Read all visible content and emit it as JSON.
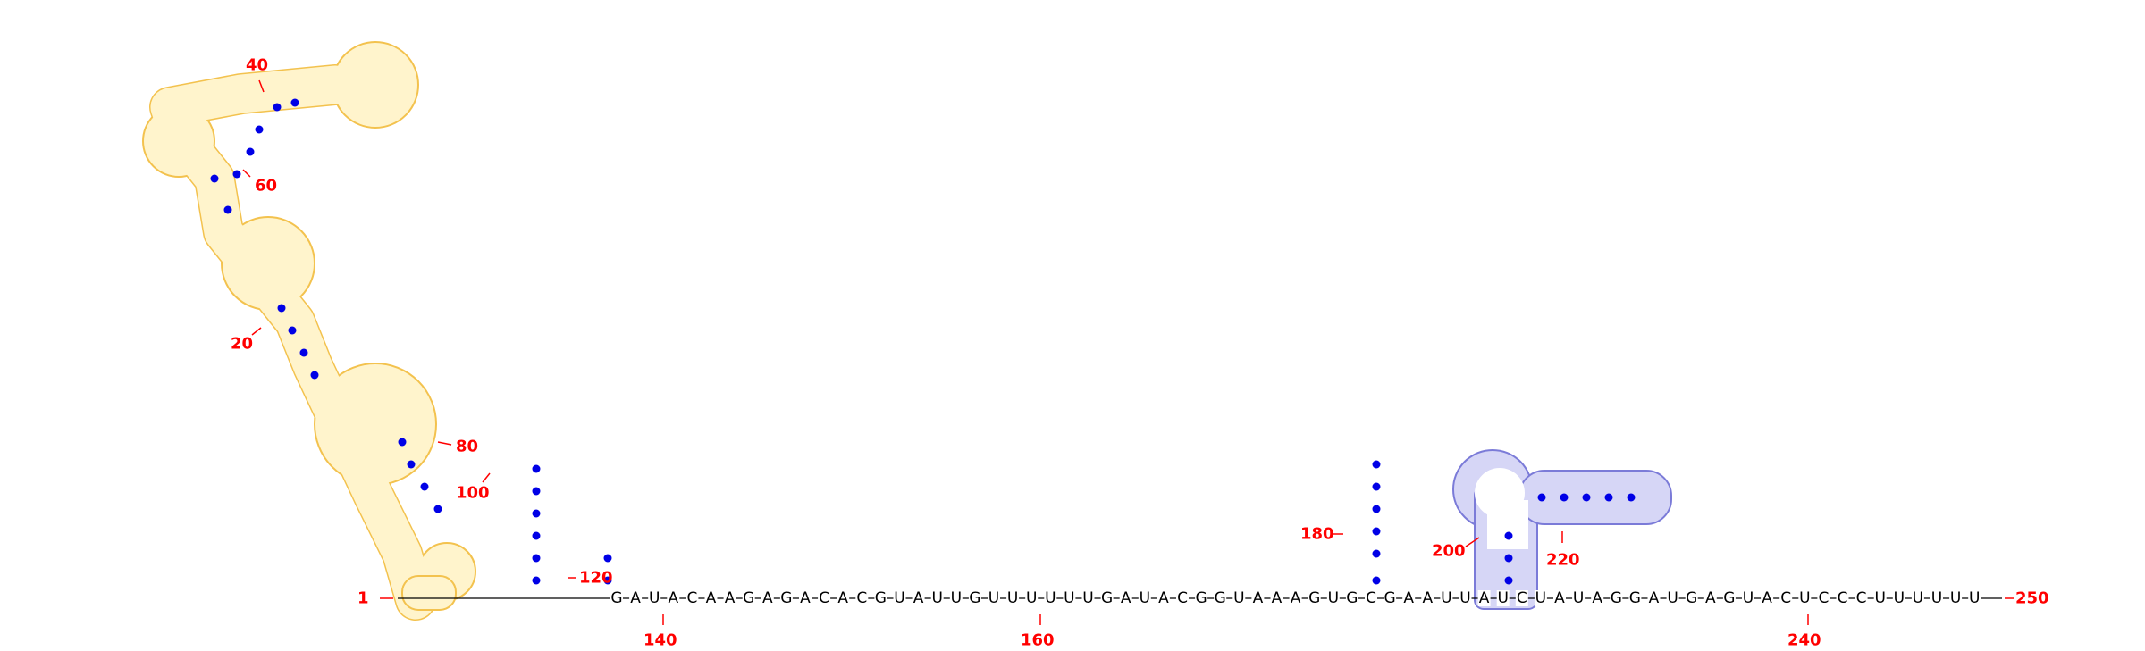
{
  "structure": {
    "tail_sequence": "GAUACAAGAGACACGUAUUGUUUUUUGAUACGGUAAAGUGCGAAUUAUCUAUAGGAUGAGUACUCCCUUUUUU",
    "colors": {
      "highlight_yellow": "#f3c24e",
      "highlight_blue": "#7b7bd8",
      "base_pair": "#0000e6",
      "position_label": "#ff0000"
    },
    "highlighted_regions": [
      {
        "name": "yellow-domain",
        "color": "yellow"
      },
      {
        "name": "blue-domain",
        "color": "blue"
      }
    ]
  },
  "labels": {
    "pos_1": "1",
    "pos_20": "20",
    "pos_40": "40",
    "pos_60": "60",
    "pos_80": "80",
    "pos_100": "100",
    "pos_120": "120",
    "pos_140": "140",
    "pos_160": "160",
    "pos_180": "180",
    "pos_200": "200",
    "pos_220": "220",
    "pos_240": "240",
    "pos_250": "250"
  }
}
